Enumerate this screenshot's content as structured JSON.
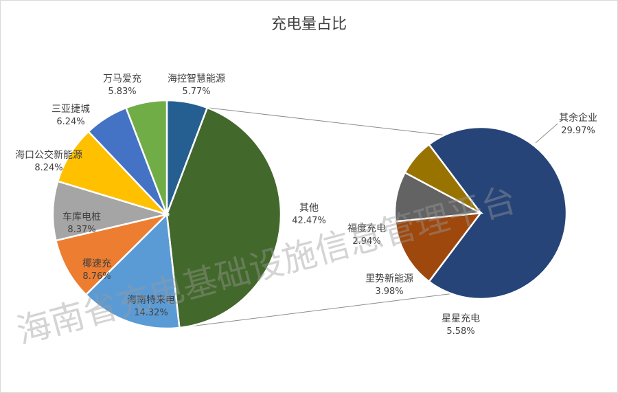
{
  "chart_data": {
    "type": "pie",
    "title": "充电量占比",
    "main_pie": {
      "slices": [
        {
          "name": "海控智慧能源",
          "value": 5.77,
          "pct_label": "5.77%",
          "color": "#255e91"
        },
        {
          "name": "其他",
          "value": 42.47,
          "pct_label": "42.47%",
          "color": "#43682b"
        },
        {
          "name": "海南特来电",
          "value": 14.32,
          "pct_label": "14.32%",
          "color": "#5b9bd5"
        },
        {
          "name": "椰速充",
          "value": 8.76,
          "pct_label": "8.76%",
          "color": "#ed7d31"
        },
        {
          "name": "车库电桩",
          "value": 8.37,
          "pct_label": "8.37%",
          "color": "#a5a5a5"
        },
        {
          "name": "海口公交新能源",
          "value": 8.24,
          "pct_label": "8.24%",
          "color": "#ffc000"
        },
        {
          "name": "三亚捷城",
          "value": 6.24,
          "pct_label": "6.24%",
          "color": "#4472c4"
        },
        {
          "name": "万马爱充",
          "value": 5.83,
          "pct_label": "5.83%",
          "color": "#70ad47"
        }
      ]
    },
    "secondary_pie": {
      "slices": [
        {
          "name": "其余企业",
          "value": 29.97,
          "pct_label": "29.97%",
          "color": "#264478"
        },
        {
          "name": "星星充电",
          "value": 5.58,
          "pct_label": "5.58%",
          "color": "#9e480e"
        },
        {
          "name": "里势新能源",
          "value": 3.98,
          "pct_label": "3.98%",
          "color": "#636363"
        },
        {
          "name": "福度充电",
          "value": 2.94,
          "pct_label": "2.94%",
          "color": "#997300"
        }
      ]
    },
    "legend": "none"
  },
  "watermark": "海南省充电基础设施信息管理平台"
}
